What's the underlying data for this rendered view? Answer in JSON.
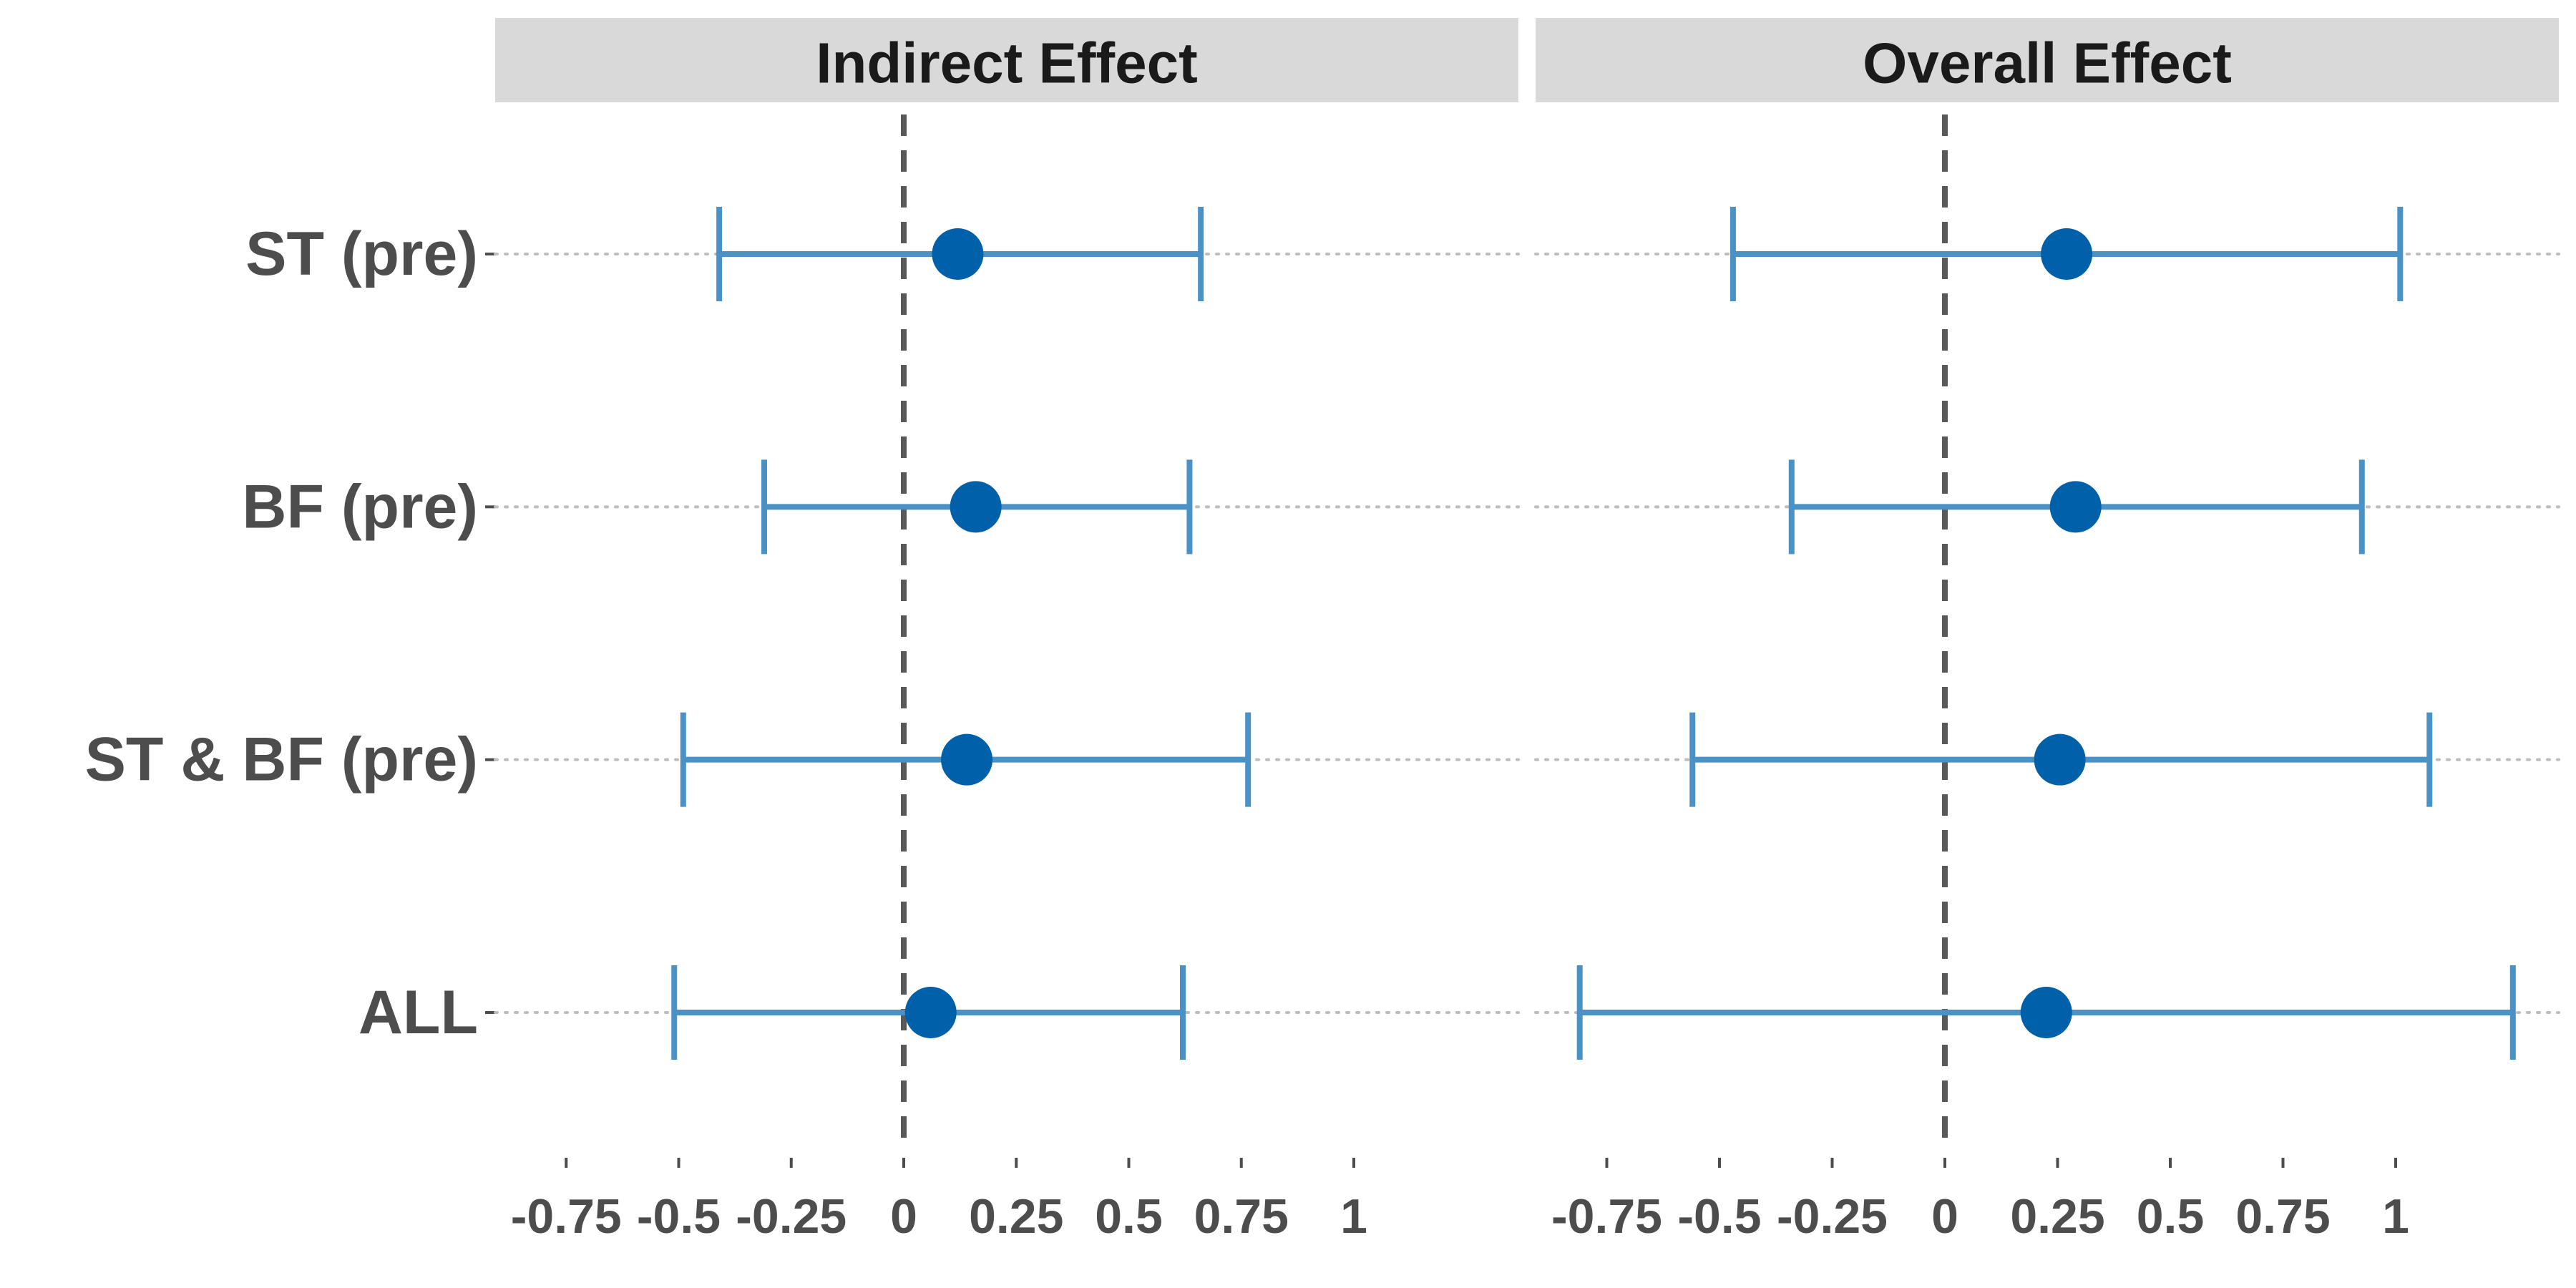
{
  "chart_data": {
    "type": "forest",
    "facets": [
      {
        "label": "Indirect Effect",
        "points": [
          {
            "category": "ST (pre)",
            "estimate": 0.12,
            "lower": -0.41,
            "upper": 0.66
          },
          {
            "category": "BF (pre)",
            "estimate": 0.16,
            "lower": -0.31,
            "upper": 0.635
          },
          {
            "category": "ST & BF (pre)",
            "estimate": 0.14,
            "lower": -0.49,
            "upper": 0.765
          },
          {
            "category": "ALL",
            "estimate": 0.06,
            "lower": -0.51,
            "upper": 0.62
          }
        ]
      },
      {
        "label": "Overall Effect",
        "points": [
          {
            "category": "ST (pre)",
            "estimate": 0.27,
            "lower": -0.47,
            "upper": 1.01
          },
          {
            "category": "BF (pre)",
            "estimate": 0.29,
            "lower": -0.34,
            "upper": 0.925
          },
          {
            "category": "ST & BF (pre)",
            "estimate": 0.255,
            "lower": -0.56,
            "upper": 1.075
          },
          {
            "category": "ALL",
            "estimate": 0.225,
            "lower": -0.81,
            "upper": 1.26
          }
        ]
      }
    ],
    "categories": [
      "ST (pre)",
      "BF (pre)",
      "ST & BF (pre)",
      "ALL"
    ],
    "x_ticks": [
      {
        "value": -0.75,
        "label": "-0.75"
      },
      {
        "value": -0.5,
        "label": "-0.5"
      },
      {
        "value": -0.25,
        "label": "-0.25"
      },
      {
        "value": 0,
        "label": "0"
      },
      {
        "value": 0.25,
        "label": "0.25"
      },
      {
        "value": 0.5,
        "label": "0.5"
      },
      {
        "value": 0.75,
        "label": "0.75"
      },
      {
        "value": 1,
        "label": "1"
      }
    ],
    "xlim": [
      -0.9,
      1.37
    ],
    "reference_line": 0,
    "title": "",
    "xlabel": "",
    "ylabel": "",
    "grid": "horizontal dotted",
    "legend": "none",
    "colors": {
      "point": "#0060aa",
      "errorbar": "#4a92c6",
      "reference": "#595959",
      "strip_bg": "#d9d9d9",
      "grid": "#bdbdbd",
      "text": "#4d4d4d",
      "strip_text": "#1a1a1a"
    }
  }
}
